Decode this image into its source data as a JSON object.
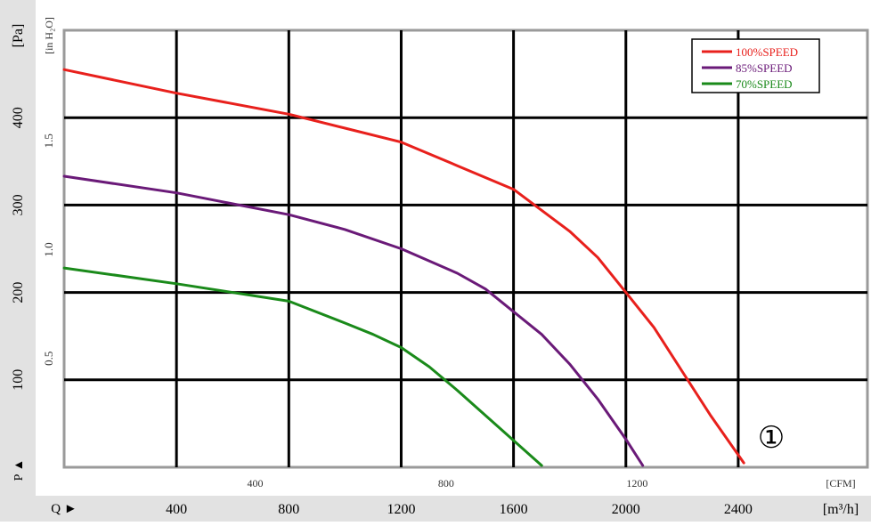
{
  "chart_data": {
    "type": "line",
    "title": "",
    "curve_marker": "①",
    "y_axis_pa": {
      "label": "[Pa]",
      "ticks": [
        100,
        200,
        300,
        400
      ],
      "ylim": [
        0,
        500
      ]
    },
    "y_axis_inh2o": {
      "label": "[in H₂O]",
      "ticks": [
        "0.5",
        "1.0",
        "1.5"
      ],
      "tick_values_pa": [
        124.5,
        249,
        373.5
      ]
    },
    "y_axis_marker": "P ▲",
    "x_axis_m3h": {
      "label": "[m³/h]",
      "marker": "Q ►",
      "ticks": [
        400,
        800,
        1200,
        1600,
        2000,
        2400
      ],
      "xlim": [
        0,
        2860
      ]
    },
    "x_axis_cfm": {
      "label": "[CFM]",
      "ticks": [
        400,
        800,
        1200
      ],
      "tick_values_m3h": [
        680,
        1360,
        2040
      ]
    },
    "grid": true,
    "grid_x_m3h": [
      400,
      800,
      1200,
      1600,
      2000,
      2400
    ],
    "grid_y_pa": [
      100,
      200,
      300,
      400
    ],
    "legend_position": "top-right",
    "series": [
      {
        "name": "100%SPEED",
        "color": "#e8201c",
        "x": [
          0,
          400,
          800,
          1000,
          1200,
          1400,
          1600,
          1800,
          1900,
          2000,
          2100,
          2200,
          2300,
          2420
        ],
        "y": [
          455,
          428,
          404,
          388,
          372,
          345,
          318,
          270,
          240,
          200,
          160,
          110,
          60,
          5
        ]
      },
      {
        "name": "85%SPEED",
        "color": "#6a1a78",
        "x": [
          0,
          400,
          800,
          1000,
          1200,
          1400,
          1500,
          1600,
          1700,
          1800,
          1900,
          2000,
          2060
        ],
        "y": [
          333,
          314,
          289,
          272,
          250,
          222,
          204,
          178,
          152,
          118,
          78,
          32,
          2
        ]
      },
      {
        "name": "70%SPEED",
        "color": "#1a8a1a",
        "x": [
          0,
          400,
          800,
          1000,
          1100,
          1200,
          1300,
          1400,
          1550,
          1700
        ],
        "y": [
          228,
          210,
          190,
          165,
          152,
          137,
          115,
          88,
          45,
          2
        ]
      }
    ]
  }
}
